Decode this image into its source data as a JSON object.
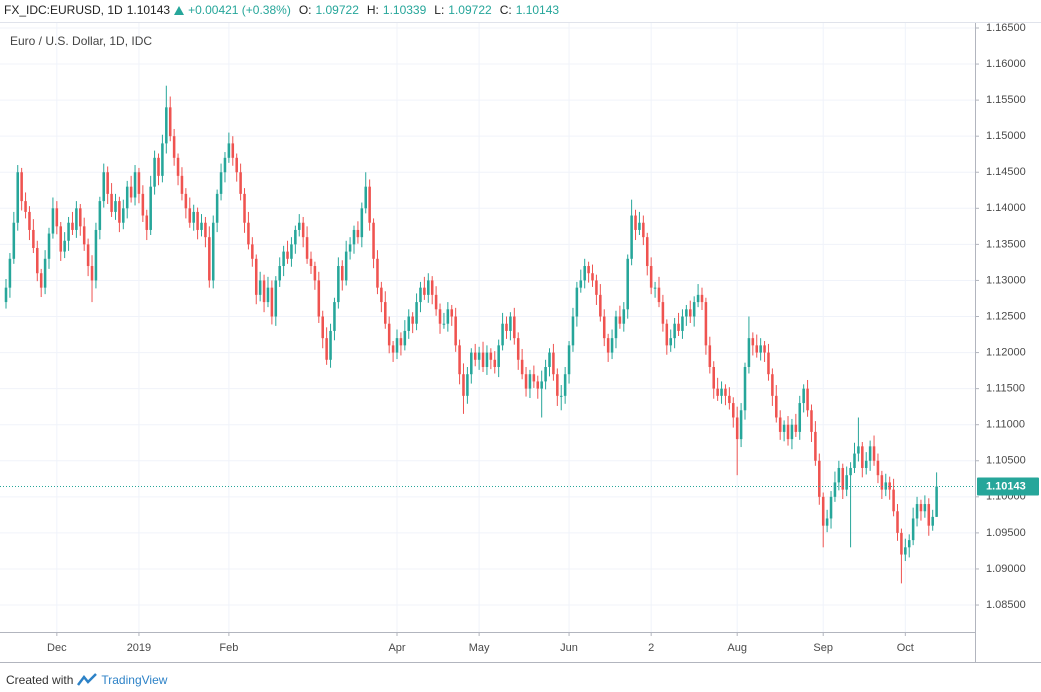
{
  "header": {
    "symbol": "FX_IDC:EURUSD, 1D",
    "price": "1.10143",
    "change": "+0.00421 (+0.38%)",
    "ohlc": [
      {
        "label": "O:",
        "value": "1.09722"
      },
      {
        "label": "H:",
        "value": "1.10339"
      },
      {
        "label": "L:",
        "value": "1.09722"
      },
      {
        "label": "C:",
        "value": "1.10143"
      }
    ]
  },
  "footer": {
    "text": "Created with",
    "brand": "TradingView"
  },
  "chart_data": {
    "type": "candlestick",
    "title": "Euro / U.S. Dollar, 1D, IDC",
    "up_color": "#26a69a",
    "down_color": "#ef5350",
    "grid": true,
    "price_line": 1.10143,
    "xlim": [
      -1.535,
      247.82
    ],
    "ylim": [
      1.08126,
      1.16583
    ],
    "xticks": [
      {
        "value": 13,
        "label": "Dec"
      },
      {
        "value": 34,
        "label": "2019"
      },
      {
        "value": 57,
        "label": "Feb"
      },
      {
        "value": 100,
        "label": "Apr"
      },
      {
        "value": 121,
        "label": "May"
      },
      {
        "value": 144,
        "label": "Jun"
      },
      {
        "value": 165,
        "label": "2"
      },
      {
        "value": 187,
        "label": "Aug"
      },
      {
        "value": 209,
        "label": "Sep"
      },
      {
        "value": 230,
        "label": "Oct"
      }
    ],
    "yticks": [
      {
        "value": 1.085,
        "label": "1.08500"
      },
      {
        "value": 1.09,
        "label": "1.09000"
      },
      {
        "value": 1.095,
        "label": "1.09500"
      },
      {
        "value": 1.1,
        "label": "1.10000"
      },
      {
        "value": 1.105,
        "label": "1.10500"
      },
      {
        "value": 1.11,
        "label": "1.11000"
      },
      {
        "value": 1.115,
        "label": "1.11500"
      },
      {
        "value": 1.12,
        "label": "1.12000"
      },
      {
        "value": 1.125,
        "label": "1.12500"
      },
      {
        "value": 1.13,
        "label": "1.13000"
      },
      {
        "value": 1.135,
        "label": "1.13500"
      },
      {
        "value": 1.14,
        "label": "1.14000"
      },
      {
        "value": 1.145,
        "label": "1.14500"
      },
      {
        "value": 1.15,
        "label": "1.15000"
      },
      {
        "value": 1.155,
        "label": "1.15500"
      },
      {
        "value": 1.16,
        "label": "1.16000"
      },
      {
        "value": 1.165,
        "label": "1.16500"
      }
    ],
    "open": [
      1.127,
      1.129,
      1.133,
      1.138,
      1.145,
      1.141,
      1.1395,
      1.137,
      1.1345,
      1.131,
      1.129,
      1.133,
      1.1365,
      1.14,
      1.1375,
      1.134,
      1.1355,
      1.138,
      1.137,
      1.14,
      1.1375,
      1.135,
      1.132,
      1.13,
      1.137,
      1.141,
      1.145,
      1.142,
      1.1395,
      1.141,
      1.138,
      1.14,
      1.143,
      1.1415,
      1.145,
      1.142,
      1.139,
      1.137,
      1.143,
      1.147,
      1.1445,
      1.149,
      1.154,
      1.15,
      1.147,
      1.1445,
      1.142,
      1.14,
      1.138,
      1.1395,
      1.137,
      1.138,
      1.136,
      1.13,
      1.138,
      1.142,
      1.145,
      1.147,
      1.149,
      1.147,
      1.145,
      1.142,
      1.138,
      1.135,
      1.133,
      1.128,
      1.13,
      1.127,
      1.129,
      1.125,
      1.13,
      1.132,
      1.134,
      1.133,
      1.135,
      1.137,
      1.138,
      1.136,
      1.133,
      1.132,
      1.13,
      1.125,
      1.122,
      1.119,
      1.123,
      1.127,
      1.132,
      1.13,
      1.134,
      1.135,
      1.137,
      1.136,
      1.14,
      1.143,
      1.138,
      1.133,
      1.129,
      1.127,
      1.124,
      1.121,
      1.12,
      1.122,
      1.121,
      1.123,
      1.125,
      1.124,
      1.127,
      1.129,
      1.128,
      1.13,
      1.128,
      1.126,
      1.124,
      1.124,
      1.126,
      1.125,
      1.121,
      1.117,
      1.114,
      1.117,
      1.12,
      1.119,
      1.12,
      1.118,
      1.12,
      1.119,
      1.118,
      1.121,
      1.124,
      1.123,
      1.125,
      1.122,
      1.119,
      1.117,
      1.115,
      1.117,
      1.116,
      1.115,
      1.116,
      1.118,
      1.12,
      1.117,
      1.114,
      1.114,
      1.117,
      1.121,
      1.125,
      1.129,
      1.13,
      1.132,
      1.131,
      1.13,
      1.128,
      1.125,
      1.122,
      1.12,
      1.122,
      1.125,
      1.124,
      1.126,
      1.133,
      1.139,
      1.137,
      1.138,
      1.136,
      1.132,
      1.129,
      1.129,
      1.127,
      1.124,
      1.121,
      1.122,
      1.124,
      1.123,
      1.125,
      1.126,
      1.125,
      1.127,
      1.128,
      1.127,
      1.121,
      1.118,
      1.115,
      1.114,
      1.115,
      1.114,
      1.113,
      1.111,
      1.108,
      1.112,
      1.118,
      1.122,
      1.121,
      1.12,
      1.121,
      1.12,
      1.117,
      1.114,
      1.111,
      1.109,
      1.11,
      1.108,
      1.11,
      1.109,
      1.113,
      1.115,
      1.112,
      1.109,
      1.105,
      1.1,
      1.096,
      1.097,
      1.1,
      1.102,
      1.104,
      1.101,
      1.103,
      1.104,
      1.106,
      1.107,
      1.104,
      1.105,
      1.107,
      1.105,
      1.103,
      1.101,
      1.102,
      1.101,
      1.098,
      1.095,
      1.092,
      1.093,
      1.094,
      1.097,
      1.099,
      1.098,
      1.099,
      1.096,
      1.09722
    ],
    "high": [
      1.1302,
      1.1338,
      1.1395,
      1.146,
      1.1456,
      1.1422,
      1.1403,
      1.1385,
      1.1355,
      1.1316,
      1.1342,
      1.1373,
      1.1415,
      1.141,
      1.1381,
      1.1367,
      1.1388,
      1.1395,
      1.141,
      1.1406,
      1.1387,
      1.1358,
      1.1335,
      1.138,
      1.1416,
      1.1462,
      1.1458,
      1.1435,
      1.142,
      1.1416,
      1.1412,
      1.1438,
      1.1445,
      1.146,
      1.1456,
      1.1432,
      1.1398,
      1.1445,
      1.148,
      1.1476,
      1.1502,
      1.157,
      1.1555,
      1.151,
      1.1476,
      1.1457,
      1.1428,
      1.1415,
      1.1405,
      1.1401,
      1.1392,
      1.1388,
      1.1375,
      1.139,
      1.1426,
      1.1462,
      1.1478,
      1.1505,
      1.15,
      1.1476,
      1.1462,
      1.1428,
      1.1395,
      1.136,
      1.1336,
      1.1312,
      1.1308,
      1.1305,
      1.13,
      1.1306,
      1.1332,
      1.1348,
      1.1355,
      1.136,
      1.1376,
      1.1392,
      1.1388,
      1.1375,
      1.134,
      1.1326,
      1.1312,
      1.1258,
      1.1235,
      1.124,
      1.1276,
      1.1332,
      1.1328,
      1.1355,
      1.136,
      1.1376,
      1.1382,
      1.1408,
      1.145,
      1.144,
      1.1386,
      1.1342,
      1.1298,
      1.1285,
      1.125,
      1.1216,
      1.1232,
      1.1228,
      1.1245,
      1.126,
      1.1256,
      1.1282,
      1.1298,
      1.1305,
      1.131,
      1.1306,
      1.1292,
      1.1268,
      1.1255,
      1.127,
      1.1266,
      1.1262,
      1.1218,
      1.1185,
      1.118,
      1.1206,
      1.1212,
      1.1208,
      1.1215,
      1.121,
      1.1206,
      1.1202,
      1.1218,
      1.1255,
      1.125,
      1.1256,
      1.1262,
      1.1228,
      1.1205,
      1.118,
      1.1176,
      1.1182,
      1.1168,
      1.1175,
      1.119,
      1.1206,
      1.1212,
      1.1178,
      1.1155,
      1.118,
      1.1216,
      1.1262,
      1.1298,
      1.1315,
      1.133,
      1.1326,
      1.1322,
      1.1308,
      1.1295,
      1.126,
      1.1226,
      1.1232,
      1.1258,
      1.1265,
      1.127,
      1.1336,
      1.1412,
      1.1398,
      1.1395,
      1.139,
      1.1366,
      1.1332,
      1.1298,
      1.1305,
      1.128,
      1.1246,
      1.1232,
      1.1248,
      1.1255,
      1.126,
      1.1266,
      1.1272,
      1.1278,
      1.1295,
      1.129,
      1.1276,
      1.1222,
      1.1188,
      1.1165,
      1.116,
      1.1156,
      1.1152,
      1.1138,
      1.1125,
      1.113,
      1.1186,
      1.125,
      1.1228,
      1.1225,
      1.122,
      1.1216,
      1.1212,
      1.1178,
      1.1155,
      1.112,
      1.1106,
      1.1112,
      1.1108,
      1.1115,
      1.114,
      1.1156,
      1.1162,
      1.1128,
      1.1105,
      1.106,
      1.1006,
      1.0982,
      1.1008,
      1.1035,
      1.105,
      1.1046,
      1.1042,
      1.1048,
      1.1075,
      1.111,
      1.1076,
      1.1062,
      1.1078,
      1.1085,
      1.106,
      1.1036,
      1.1032,
      1.1028,
      1.1025,
      1.099,
      1.0956,
      1.0942,
      1.0948,
      1.0985,
      1.1,
      1.0996,
      1.1002,
      1.0998,
      1.0982,
      1.10339
    ],
    "low": [
      1.1261,
      1.1276,
      1.1323,
      1.1369,
      1.1397,
      1.1386,
      1.1356,
      1.1338,
      1.1299,
      1.1277,
      1.1281,
      1.1316,
      1.1358,
      1.1364,
      1.1327,
      1.1331,
      1.1341,
      1.1363,
      1.1359,
      1.1362,
      1.1341,
      1.1306,
      1.127,
      1.1289,
      1.1357,
      1.1401,
      1.1406,
      1.1388,
      1.1384,
      1.1367,
      1.1371,
      1.1386,
      1.1408,
      1.1404,
      1.1407,
      1.1381,
      1.1356,
      1.1363,
      1.1419,
      1.1432,
      1.1436,
      1.1476,
      1.1493,
      1.1459,
      1.1432,
      1.1411,
      1.1386,
      1.1373,
      1.1369,
      1.1357,
      1.1361,
      1.1346,
      1.129,
      1.1289,
      1.1367,
      1.1411,
      1.1436,
      1.1463,
      1.1459,
      1.1437,
      1.1411,
      1.1366,
      1.1343,
      1.1319,
      1.1267,
      1.1271,
      1.1256,
      1.1263,
      1.1239,
      1.1237,
      1.1291,
      1.1306,
      1.1323,
      1.1319,
      1.1337,
      1.1361,
      1.1346,
      1.1323,
      1.1309,
      1.1287,
      1.1241,
      1.1206,
      1.1183,
      1.1179,
      1.1217,
      1.1261,
      1.1286,
      1.1293,
      1.1329,
      1.1337,
      1.1351,
      1.1346,
      1.1393,
      1.1369,
      1.1317,
      1.1281,
      1.1256,
      1.1233,
      1.1199,
      1.1187,
      1.1191,
      1.1196,
      1.1203,
      1.1219,
      1.1227,
      1.1231,
      1.1256,
      1.1273,
      1.1269,
      1.1267,
      1.1251,
      1.1226,
      1.1233,
      1.1229,
      1.1237,
      1.1201,
      1.1156,
      1.1115,
      1.1129,
      1.1157,
      1.1181,
      1.1176,
      1.1173,
      1.1169,
      1.1177,
      1.1171,
      1.1166,
      1.1203,
      1.1219,
      1.1217,
      1.1211,
      1.1176,
      1.1163,
      1.1139,
      1.1137,
      1.1151,
      1.1136,
      1.111,
      1.1149,
      1.1167,
      1.1161,
      1.1126,
      1.112,
      1.1129,
      1.1157,
      1.1201,
      1.1236,
      1.1283,
      1.1289,
      1.1297,
      1.1291,
      1.1266,
      1.1243,
      1.1209,
      1.1187,
      1.1191,
      1.1206,
      1.1233,
      1.1229,
      1.1247,
      1.1321,
      1.1356,
      1.1363,
      1.1349,
      1.1307,
      1.1281,
      1.1276,
      1.1263,
      1.1229,
      1.1197,
      1.1201,
      1.1206,
      1.1223,
      1.1219,
      1.1237,
      1.1241,
      1.1236,
      1.1263,
      1.1259,
      1.1197,
      1.1171,
      1.1136,
      1.1133,
      1.1129,
      1.1127,
      1.1121,
      1.1096,
      1.103,
      1.1069,
      1.1107,
      1.1171,
      1.1196,
      1.1193,
      1.1189,
      1.1187,
      1.1161,
      1.1126,
      1.1103,
      1.1079,
      1.1077,
      1.1071,
      1.1066,
      1.1083,
      1.1079,
      1.1117,
      1.1111,
      1.1076,
      1.1043,
      1.0989,
      1.093,
      1.0951,
      1.0956,
      1.0993,
      1.1009,
      1.0997,
      1.1001,
      1.093,
      1.1033,
      1.1049,
      1.1027,
      1.1031,
      1.1036,
      1.1043,
      1.1019,
      1.0997,
      1.1001,
      1.0996,
      1.0973,
      1.0939,
      1.088,
      1.0911,
      1.0916,
      1.0933,
      1.0959,
      1.0967,
      1.0971,
      1.0946,
      1.0953,
      1.09722
    ],
    "close": [
      1.129,
      1.133,
      1.138,
      1.145,
      1.141,
      1.1395,
      1.137,
      1.1345,
      1.131,
      1.129,
      1.133,
      1.1365,
      1.14,
      1.1375,
      1.134,
      1.1355,
      1.138,
      1.137,
      1.14,
      1.1375,
      1.135,
      1.132,
      1.13,
      1.137,
      1.141,
      1.145,
      1.142,
      1.1395,
      1.141,
      1.138,
      1.14,
      1.143,
      1.1415,
      1.145,
      1.142,
      1.139,
      1.137,
      1.143,
      1.147,
      1.1445,
      1.149,
      1.154,
      1.15,
      1.147,
      1.1445,
      1.142,
      1.14,
      1.138,
      1.1395,
      1.137,
      1.138,
      1.136,
      1.13,
      1.138,
      1.142,
      1.145,
      1.147,
      1.149,
      1.147,
      1.145,
      1.142,
      1.138,
      1.135,
      1.133,
      1.128,
      1.13,
      1.127,
      1.129,
      1.125,
      1.13,
      1.132,
      1.134,
      1.133,
      1.135,
      1.137,
      1.138,
      1.136,
      1.133,
      1.132,
      1.13,
      1.125,
      1.122,
      1.119,
      1.123,
      1.127,
      1.132,
      1.13,
      1.134,
      1.135,
      1.137,
      1.136,
      1.14,
      1.143,
      1.138,
      1.133,
      1.129,
      1.127,
      1.124,
      1.121,
      1.12,
      1.122,
      1.121,
      1.123,
      1.125,
      1.124,
      1.127,
      1.129,
      1.128,
      1.13,
      1.128,
      1.126,
      1.124,
      1.124,
      1.126,
      1.125,
      1.121,
      1.117,
      1.114,
      1.117,
      1.12,
      1.119,
      1.12,
      1.118,
      1.12,
      1.119,
      1.118,
      1.121,
      1.124,
      1.123,
      1.125,
      1.122,
      1.119,
      1.117,
      1.115,
      1.117,
      1.116,
      1.115,
      1.116,
      1.118,
      1.12,
      1.117,
      1.114,
      1.114,
      1.117,
      1.121,
      1.125,
      1.129,
      1.13,
      1.132,
      1.131,
      1.13,
      1.128,
      1.125,
      1.122,
      1.12,
      1.122,
      1.125,
      1.124,
      1.126,
      1.133,
      1.139,
      1.137,
      1.138,
      1.136,
      1.132,
      1.129,
      1.129,
      1.127,
      1.124,
      1.121,
      1.122,
      1.124,
      1.123,
      1.125,
      1.126,
      1.125,
      1.127,
      1.128,
      1.127,
      1.121,
      1.118,
      1.115,
      1.114,
      1.115,
      1.114,
      1.113,
      1.111,
      1.108,
      1.112,
      1.118,
      1.122,
      1.121,
      1.12,
      1.121,
      1.12,
      1.117,
      1.114,
      1.111,
      1.109,
      1.11,
      1.108,
      1.11,
      1.109,
      1.113,
      1.115,
      1.112,
      1.109,
      1.105,
      1.1,
      1.096,
      1.097,
      1.1,
      1.102,
      1.104,
      1.101,
      1.103,
      1.104,
      1.106,
      1.107,
      1.104,
      1.105,
      1.107,
      1.105,
      1.103,
      1.101,
      1.102,
      1.101,
      1.098,
      1.095,
      1.092,
      1.093,
      1.094,
      1.097,
      1.099,
      1.098,
      1.099,
      1.096,
      1.09722,
      1.10143
    ]
  }
}
